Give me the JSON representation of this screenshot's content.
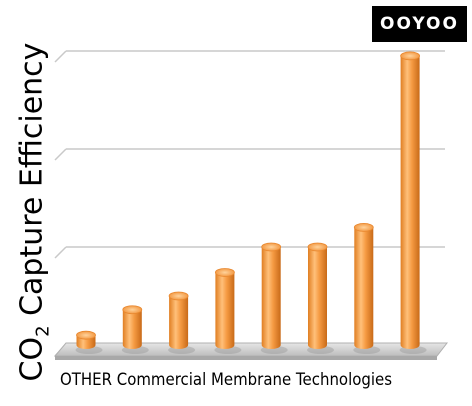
{
  "logo": {
    "text": "OOYOO"
  },
  "chart_data": {
    "type": "bar",
    "title": "",
    "ylabel_main": "CO",
    "ylabel_sub": "2",
    "ylabel_rest": " Capture Efficiency",
    "xlabel": "OTHER Commercial Membrane Technologies",
    "categories": [
      "",
      "",
      "",
      "",
      "",
      "",
      "",
      ""
    ],
    "values": [
      0.1,
      0.36,
      0.5,
      0.74,
      1.0,
      1.0,
      1.2,
      2.95
    ],
    "ylim": [
      0,
      3
    ],
    "grid": true,
    "legend": "none",
    "bar_color": "#F4973A"
  }
}
